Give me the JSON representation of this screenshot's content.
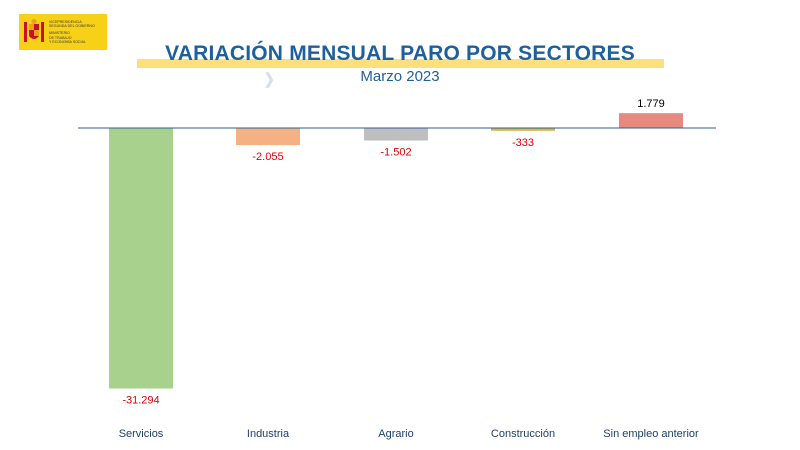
{
  "header": {
    "logo_lines": [
      "VICEPRESIDENCIA",
      "SEGUNDA DEL GOBIERNO",
      "",
      "MINISTERIO",
      "DE TRABAJO",
      "Y ECONOMÍA SOCIAL"
    ],
    "title": "VARIACIÓN MENSUAL PARO POR SECTORES",
    "subtitle": "Marzo 2023"
  },
  "chart_data": {
    "type": "bar",
    "title": "VARIACIÓN MENSUAL PARO POR SECTORES",
    "subtitle": "Marzo 2023",
    "xlabel": "",
    "ylabel": "",
    "categories": [
      "Servicios",
      "Industria",
      "Agrario",
      "Construcción",
      "Sin empleo anterior"
    ],
    "values": [
      -31294,
      -2055,
      -1502,
      -333,
      1779
    ],
    "data_labels": [
      "-31.294",
      "-2.055",
      "-1.502",
      "-333",
      "1.779"
    ],
    "bar_colors": [
      "#a9d18e",
      "#f4b183",
      "#bfbfbf",
      "#d9b24a",
      "#e6897f"
    ],
    "label_colors": {
      "negative": "#e00000",
      "positive": "#000000"
    },
    "axis_line_color": "#2e5f8f",
    "grid": false,
    "legend": "none"
  }
}
